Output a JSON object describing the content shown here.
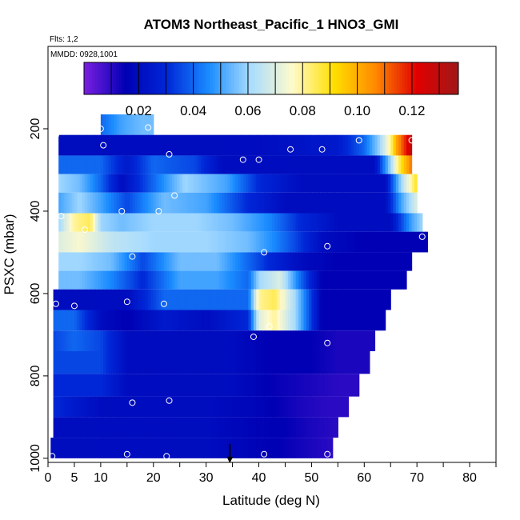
{
  "chart_data": {
    "type": "heatmap",
    "title": "ATOM3 Northeast_Pacific_1 HNO3_GMI",
    "flights_label": "Flts: 1,2",
    "dates_label": "MMDD: 0928,1001",
    "xlabel": "Latitude (deg N)",
    "ylabel": "PSXC (mbar)",
    "xlim": [
      0,
      85
    ],
    "ylim": [
      1010,
      0
    ],
    "x_ticks": [
      0,
      5,
      10,
      20,
      30,
      40,
      50,
      60,
      70,
      80
    ],
    "y_ticks": [
      200,
      400,
      600,
      800,
      1000
    ],
    "grid": false,
    "colorbar": {
      "range": [
        0.0,
        0.137
      ],
      "ticks": [
        0.02,
        0.04,
        0.06,
        0.08,
        0.1,
        0.12
      ],
      "tick_labels": [
        "0.02",
        "0.04",
        "0.06",
        "0.08",
        "0.10",
        "0.12"
      ],
      "colors": [
        "#7b1fe0",
        "#0000b4",
        "#0028d8",
        "#1a8cff",
        "#a8dcff",
        "#fffacc",
        "#ffe000",
        "#ff8a00",
        "#e00000",
        "#a01818"
      ],
      "boundaries": [
        0.01,
        0.02,
        0.03,
        0.04,
        0.05,
        0.06,
        0.07,
        0.08,
        0.09,
        0.1,
        0.11,
        0.12,
        0.13
      ]
    },
    "bands": [
      {
        "p0": 165,
        "p1": 215,
        "lat0": 10,
        "lat1": 20,
        "values": [
          [
            10,
            0.04
          ],
          [
            14,
            0.05
          ],
          [
            18,
            0.055
          ],
          [
            20,
            0.055
          ]
        ]
      },
      {
        "p0": 215,
        "p1": 265,
        "lat0": 2,
        "lat1": 69,
        "values": [
          [
            2,
            0.02
          ],
          [
            10,
            0.02
          ],
          [
            25,
            0.02
          ],
          [
            40,
            0.02
          ],
          [
            55,
            0.025
          ],
          [
            60,
            0.04
          ],
          [
            63,
            0.06
          ],
          [
            65,
            0.08
          ],
          [
            66,
            0.1
          ],
          [
            68,
            0.12
          ],
          [
            69,
            0.13
          ]
        ]
      },
      {
        "p0": 265,
        "p1": 310,
        "lat0": 2,
        "lat1": 69,
        "values": [
          [
            2,
            0.04
          ],
          [
            6,
            0.04
          ],
          [
            10,
            0.04
          ],
          [
            15,
            0.025
          ],
          [
            20,
            0.04
          ],
          [
            28,
            0.035
          ],
          [
            33,
            0.02
          ],
          [
            40,
            0.02
          ],
          [
            55,
            0.02
          ],
          [
            62,
            0.02
          ],
          [
            65,
            0.06
          ],
          [
            67,
            0.09
          ],
          [
            69,
            0.11
          ]
        ]
      },
      {
        "p0": 310,
        "p1": 355,
        "lat0": 2,
        "lat1": 70,
        "values": [
          [
            2,
            0.06
          ],
          [
            6,
            0.055
          ],
          [
            10,
            0.04
          ],
          [
            14,
            0.02
          ],
          [
            20,
            0.04
          ],
          [
            26,
            0.06
          ],
          [
            34,
            0.05
          ],
          [
            40,
            0.03
          ],
          [
            48,
            0.02
          ],
          [
            58,
            0.02
          ],
          [
            64,
            0.02
          ],
          [
            67,
            0.06
          ],
          [
            70,
            0.09
          ]
        ]
      },
      {
        "p0": 355,
        "p1": 405,
        "lat0": 2,
        "lat1": 70,
        "values": [
          [
            2,
            0.05
          ],
          [
            6,
            0.06
          ],
          [
            10,
            0.05
          ],
          [
            15,
            0.035
          ],
          [
            22,
            0.055
          ],
          [
            30,
            0.05
          ],
          [
            38,
            0.03
          ],
          [
            45,
            0.02
          ],
          [
            55,
            0.02
          ],
          [
            64,
            0.02
          ],
          [
            67,
            0.05
          ],
          [
            70,
            0.07
          ]
        ]
      },
      {
        "p0": 405,
        "p1": 450,
        "lat0": 2,
        "lat1": 71,
        "values": [
          [
            2,
            0.06
          ],
          [
            5,
            0.08
          ],
          [
            8,
            0.085
          ],
          [
            10,
            0.06
          ],
          [
            14,
            0.055
          ],
          [
            20,
            0.06
          ],
          [
            28,
            0.06
          ],
          [
            35,
            0.055
          ],
          [
            42,
            0.045
          ],
          [
            48,
            0.03
          ],
          [
            55,
            0.02
          ],
          [
            65,
            0.02
          ],
          [
            69,
            0.05
          ],
          [
            71,
            0.06
          ]
        ]
      },
      {
        "p0": 450,
        "p1": 500,
        "lat0": 2,
        "lat1": 72,
        "values": [
          [
            2,
            0.07
          ],
          [
            6,
            0.075
          ],
          [
            12,
            0.065
          ],
          [
            20,
            0.06
          ],
          [
            30,
            0.06
          ],
          [
            38,
            0.055
          ],
          [
            43,
            0.045
          ],
          [
            47,
            0.035
          ],
          [
            52,
            0.02
          ],
          [
            60,
            0.015
          ],
          [
            68,
            0.015
          ],
          [
            72,
            0.015
          ]
        ]
      },
      {
        "p0": 500,
        "p1": 545,
        "lat0": 2,
        "lat1": 69,
        "values": [
          [
            2,
            0.06
          ],
          [
            6,
            0.06
          ],
          [
            12,
            0.055
          ],
          [
            18,
            0.035
          ],
          [
            25,
            0.055
          ],
          [
            32,
            0.055
          ],
          [
            38,
            0.04
          ],
          [
            42,
            0.03
          ],
          [
            48,
            0.02
          ],
          [
            55,
            0.015
          ],
          [
            62,
            0.015
          ],
          [
            69,
            0.015
          ]
        ]
      },
      {
        "p0": 545,
        "p1": 590,
        "lat0": 2,
        "lat1": 68,
        "values": [
          [
            2,
            0.055
          ],
          [
            6,
            0.055
          ],
          [
            12,
            0.045
          ],
          [
            18,
            0.03
          ],
          [
            25,
            0.05
          ],
          [
            32,
            0.05
          ],
          [
            38,
            0.04
          ],
          [
            40,
            0.06
          ],
          [
            44,
            0.07
          ],
          [
            48,
            0.04
          ],
          [
            52,
            0.015
          ],
          [
            60,
            0.015
          ],
          [
            68,
            0.015
          ]
        ]
      },
      {
        "p0": 590,
        "p1": 640,
        "lat0": 1,
        "lat1": 65,
        "values": [
          [
            1,
            0.02
          ],
          [
            5,
            0.02
          ],
          [
            10,
            0.02
          ],
          [
            15,
            0.02
          ],
          [
            22,
            0.04
          ],
          [
            30,
            0.04
          ],
          [
            38,
            0.04
          ],
          [
            40,
            0.08
          ],
          [
            43,
            0.085
          ],
          [
            47,
            0.06
          ],
          [
            52,
            0.015
          ],
          [
            58,
            0.015
          ],
          [
            65,
            0.015
          ]
        ]
      },
      {
        "p0": 640,
        "p1": 690,
        "lat0": 1,
        "lat1": 64,
        "values": [
          [
            1,
            0.04
          ],
          [
            5,
            0.04
          ],
          [
            10,
            0.02
          ],
          [
            15,
            0.015
          ],
          [
            22,
            0.025
          ],
          [
            30,
            0.02
          ],
          [
            38,
            0.03
          ],
          [
            40,
            0.07
          ],
          [
            43,
            0.08
          ],
          [
            47,
            0.06
          ],
          [
            52,
            0.015
          ],
          [
            58,
            0.015
          ],
          [
            64,
            0.015
          ]
        ]
      },
      {
        "p0": 690,
        "p1": 740,
        "lat0": 1,
        "lat1": 62,
        "values": [
          [
            1,
            0.035
          ],
          [
            5,
            0.04
          ],
          [
            10,
            0.035
          ],
          [
            15,
            0.02
          ],
          [
            25,
            0.02
          ],
          [
            35,
            0.02
          ],
          [
            42,
            0.015
          ],
          [
            50,
            0.015
          ],
          [
            55,
            0.012
          ],
          [
            62,
            0.012
          ]
        ]
      },
      {
        "p0": 740,
        "p1": 795,
        "lat0": 1,
        "lat1": 61,
        "values": [
          [
            1,
            0.035
          ],
          [
            5,
            0.035
          ],
          [
            10,
            0.035
          ],
          [
            15,
            0.02
          ],
          [
            25,
            0.02
          ],
          [
            35,
            0.02
          ],
          [
            42,
            0.015
          ],
          [
            50,
            0.015
          ],
          [
            55,
            0.012
          ],
          [
            61,
            0.012
          ]
        ]
      },
      {
        "p0": 795,
        "p1": 850,
        "lat0": 1,
        "lat1": 59,
        "values": [
          [
            1,
            0.03
          ],
          [
            5,
            0.03
          ],
          [
            10,
            0.03
          ],
          [
            15,
            0.02
          ],
          [
            25,
            0.02
          ],
          [
            35,
            0.02
          ],
          [
            42,
            0.015
          ],
          [
            50,
            0.012
          ],
          [
            55,
            0.01
          ],
          [
            59,
            0.01
          ]
        ]
      },
      {
        "p0": 850,
        "p1": 900,
        "lat0": 1,
        "lat1": 57,
        "values": [
          [
            1,
            0.03
          ],
          [
            5,
            0.025
          ],
          [
            10,
            0.02
          ],
          [
            20,
            0.02
          ],
          [
            30,
            0.02
          ],
          [
            40,
            0.017
          ],
          [
            48,
            0.012
          ],
          [
            53,
            0.01
          ],
          [
            57,
            0.01
          ]
        ]
      },
      {
        "p0": 900,
        "p1": 950,
        "lat0": 1,
        "lat1": 55,
        "values": [
          [
            1,
            0.02
          ],
          [
            10,
            0.02
          ],
          [
            20,
            0.02
          ],
          [
            30,
            0.02
          ],
          [
            38,
            0.017
          ],
          [
            45,
            0.015
          ],
          [
            50,
            0.012
          ],
          [
            55,
            0.01
          ]
        ]
      },
      {
        "p0": 950,
        "p1": 1000,
        "lat0": 0.5,
        "lat1": 54,
        "values": [
          [
            0.5,
            0.02
          ],
          [
            10,
            0.02
          ],
          [
            20,
            0.02
          ],
          [
            30,
            0.02
          ],
          [
            38,
            0.017
          ],
          [
            44,
            0.015
          ],
          [
            50,
            0.012
          ],
          [
            54,
            0.01
          ]
        ]
      }
    ],
    "sample_points": [
      [
        1.5,
        215
      ],
      [
        10,
        200
      ],
      [
        19,
        197
      ],
      [
        10.5,
        240
      ],
      [
        23,
        262
      ],
      [
        37,
        275
      ],
      [
        40,
        275
      ],
      [
        46,
        250
      ],
      [
        52,
        250
      ],
      [
        59,
        228
      ],
      [
        69,
        228
      ],
      [
        24,
        362
      ],
      [
        14,
        400
      ],
      [
        21,
        400
      ],
      [
        2.5,
        412
      ],
      [
        7,
        445
      ],
      [
        16,
        510
      ],
      [
        41,
        500
      ],
      [
        53,
        485
      ],
      [
        71,
        462
      ],
      [
        1.5,
        625
      ],
      [
        5,
        630
      ],
      [
        15,
        620
      ],
      [
        22,
        625
      ],
      [
        39,
        705
      ],
      [
        42,
        680
      ],
      [
        53,
        720
      ],
      [
        16,
        865
      ],
      [
        23,
        860
      ],
      [
        0.8,
        995
      ],
      [
        15,
        990
      ],
      [
        22.5,
        995
      ],
      [
        41,
        990
      ],
      [
        53,
        990
      ]
    ],
    "marker": {
      "lat": 34.5,
      "p": 1000
    }
  }
}
